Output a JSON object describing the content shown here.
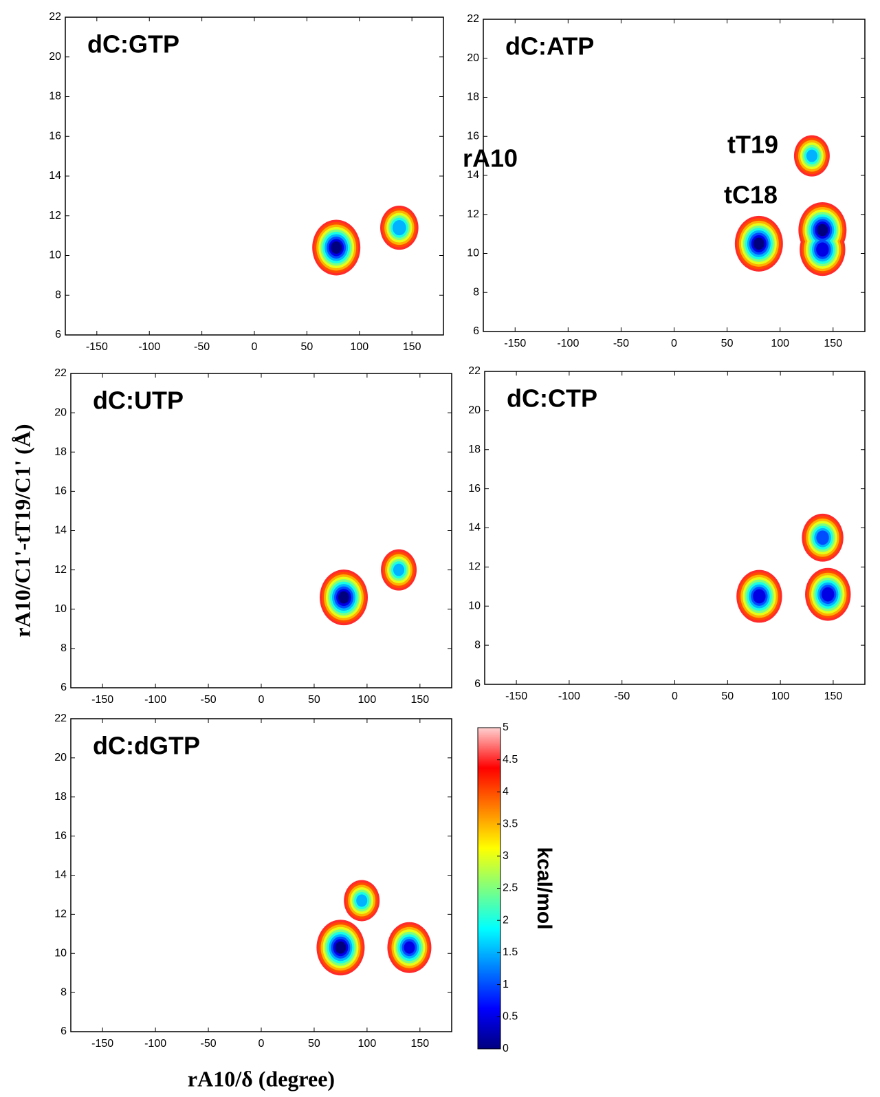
{
  "chart_data": [
    {
      "type": "contour",
      "title": "dC:GTP",
      "xlim": [
        -180,
        180
      ],
      "ylim": [
        6,
        22
      ],
      "xticks": [
        -150,
        -100,
        -50,
        0,
        50,
        100,
        150
      ],
      "yticks": [
        6,
        8,
        10,
        12,
        14,
        16,
        18,
        20,
        22
      ],
      "x": [
        78,
        138
      ],
      "y": [
        10.4,
        11.4
      ],
      "values": [
        0,
        1.2
      ]
    },
    {
      "type": "contour",
      "title": "dC:ATP",
      "xlim": [
        -180,
        180
      ],
      "ylim": [
        6,
        22
      ],
      "xticks": [
        -150,
        -100,
        -50,
        0,
        50,
        100,
        150
      ],
      "yticks": [
        6,
        8,
        10,
        12,
        14,
        16,
        18,
        20,
        22
      ],
      "x": [
        80,
        140,
        140,
        130
      ],
      "y": [
        10.5,
        11.2,
        10.2,
        15
      ],
      "values": [
        0,
        0,
        0.3,
        1.5
      ],
      "annotations": [
        "rA10",
        "tT19",
        "tC18"
      ]
    },
    {
      "type": "contour",
      "title": "dC:UTP",
      "xlim": [
        -180,
        180
      ],
      "ylim": [
        6,
        22
      ],
      "xticks": [
        -150,
        -100,
        -50,
        0,
        50,
        100,
        150
      ],
      "yticks": [
        6,
        8,
        10,
        12,
        14,
        16,
        18,
        20,
        22
      ],
      "x": [
        78,
        130
      ],
      "y": [
        10.6,
        12
      ],
      "values": [
        0,
        1.5
      ],
      "ylabel": "rA10/C1'-tT19/C1' (Å)"
    },
    {
      "type": "contour",
      "title": "dC:CTP",
      "xlim": [
        -180,
        180
      ],
      "ylim": [
        6,
        22
      ],
      "xticks": [
        -150,
        -100,
        -50,
        0,
        50,
        100,
        150
      ],
      "yticks": [
        6,
        8,
        10,
        12,
        14,
        16,
        18,
        20,
        22
      ],
      "x": [
        80,
        145,
        140
      ],
      "y": [
        10.5,
        10.6,
        13.5
      ],
      "values": [
        0.3,
        0.3,
        0.8
      ]
    },
    {
      "type": "contour",
      "title": "dC:dGTP",
      "xlim": [
        -180,
        180
      ],
      "ylim": [
        6,
        22
      ],
      "xticks": [
        -150,
        -100,
        -50,
        0,
        50,
        100,
        150
      ],
      "yticks": [
        6,
        8,
        10,
        12,
        14,
        16,
        18,
        20,
        22
      ],
      "x": [
        75,
        95,
        140
      ],
      "y": [
        10.3,
        12.7,
        10.3
      ],
      "values": [
        0,
        1.5,
        0.5
      ],
      "xlabel": "rA10/δ (degree)"
    },
    {
      "type": "colorbar",
      "label": "kcal/mol",
      "ylim": [
        0,
        5
      ],
      "yticks": [
        0,
        0.5,
        1,
        1.5,
        2,
        2.5,
        3,
        3.5,
        4,
        4.5,
        5
      ],
      "colors": [
        "#00007f",
        "#0000ff",
        "#007fff",
        "#00ffff",
        "#7fff7f",
        "#ffff00",
        "#ff7f00",
        "#ff0000",
        "#ffd0d0"
      ]
    }
  ]
}
